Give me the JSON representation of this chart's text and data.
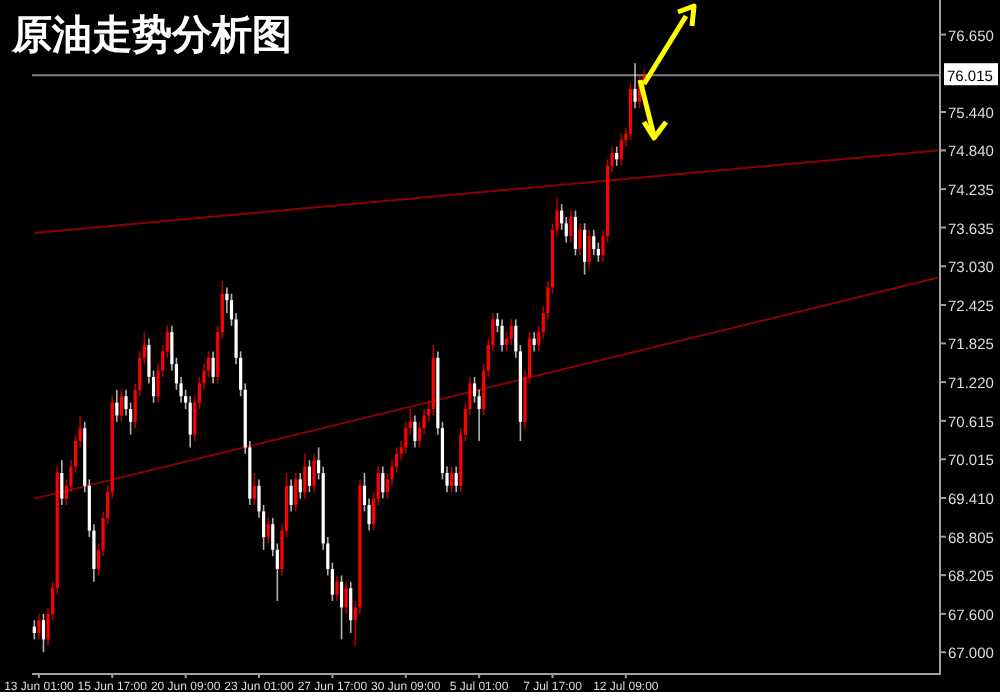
{
  "chart_data": {
    "type": "candlestick",
    "title": "原油走势分析图",
    "categories": [
      null,
      "13 Jun 01:00",
      null,
      null,
      null,
      null,
      null,
      null,
      null,
      null,
      null,
      null,
      null,
      null,
      null,
      null,
      null,
      "15 Jun 17:00",
      null,
      null,
      null,
      null,
      null,
      null,
      null,
      null,
      null,
      null,
      null,
      null,
      null,
      null,
      null,
      "20 Jun 09:00",
      null,
      null,
      null,
      null,
      null,
      null,
      null,
      null,
      null,
      null,
      null,
      null,
      null,
      null,
      null,
      "23 Jun 01:00",
      null,
      null,
      null,
      null,
      null,
      null,
      null,
      null,
      null,
      null,
      null,
      null,
      null,
      null,
      null,
      "27 Jun 17:00",
      null,
      null,
      null,
      null,
      null,
      null,
      null,
      null,
      null,
      null,
      null,
      null,
      null,
      null,
      null,
      "30 Jun 09:00",
      null,
      null,
      null,
      null,
      null,
      null,
      null,
      null,
      null,
      null,
      null,
      null,
      null,
      null,
      null,
      "5 Jul 01:00",
      null,
      null,
      null,
      null,
      null,
      null,
      null,
      null,
      null,
      null,
      null,
      null,
      null,
      null,
      null,
      "7 Jul 17:00",
      null,
      null,
      null,
      null,
      null,
      null,
      null,
      null,
      null,
      null,
      null,
      null,
      null,
      null,
      null,
      "12 Jul 09:00",
      null,
      null,
      null,
      null,
      null,
      null,
      null,
      null,
      null,
      null,
      null,
      null,
      null,
      null,
      null,
      null,
      null,
      null,
      null,
      null,
      null,
      null,
      null,
      null,
      null,
      null,
      null,
      null,
      null,
      null,
      null,
      null,
      null,
      null,
      null,
      null,
      null,
      null,
      null,
      null,
      null,
      null,
      null,
      null,
      null,
      null,
      null,
      null,
      null,
      null,
      null,
      null,
      null,
      null,
      null,
      null,
      null,
      null,
      null,
      null,
      null,
      null,
      null,
      null,
      null,
      null,
      null,
      null
    ],
    "ohlc": [
      [
        67.4,
        67.5,
        67.2,
        67.3
      ],
      [
        67.3,
        67.6,
        67.2,
        67.5
      ],
      [
        67.5,
        67.6,
        67.0,
        67.2
      ],
      [
        67.2,
        67.7,
        67.1,
        67.6
      ],
      [
        67.6,
        68.1,
        67.5,
        68.0
      ],
      [
        68.0,
        69.9,
        67.9,
        69.8
      ],
      [
        69.8,
        70.0,
        69.3,
        69.4
      ],
      [
        69.4,
        69.7,
        69.3,
        69.6
      ],
      [
        69.6,
        70.0,
        69.5,
        69.9
      ],
      [
        69.9,
        70.4,
        69.8,
        70.3
      ],
      [
        70.3,
        70.7,
        70.2,
        70.5
      ],
      [
        70.5,
        70.6,
        69.5,
        69.6
      ],
      [
        69.6,
        69.7,
        68.8,
        68.9
      ],
      [
        68.9,
        69.0,
        68.1,
        68.3
      ],
      [
        68.3,
        68.7,
        68.2,
        68.6
      ],
      [
        68.6,
        69.2,
        68.5,
        69.1
      ],
      [
        69.1,
        69.6,
        69.0,
        69.5
      ],
      [
        69.5,
        71.0,
        69.4,
        70.9
      ],
      [
        70.9,
        71.1,
        70.6,
        70.7
      ],
      [
        70.7,
        71.1,
        70.6,
        71.0
      ],
      [
        71.0,
        71.1,
        70.7,
        70.8
      ],
      [
        70.8,
        70.9,
        70.4,
        70.6
      ],
      [
        70.6,
        71.2,
        70.5,
        71.1
      ],
      [
        71.1,
        71.7,
        71.0,
        71.6
      ],
      [
        71.6,
        72.0,
        71.5,
        71.8
      ],
      [
        71.8,
        71.9,
        71.2,
        71.3
      ],
      [
        71.3,
        71.4,
        70.9,
        71.0
      ],
      [
        71.0,
        71.5,
        70.9,
        71.4
      ],
      [
        71.4,
        71.8,
        71.3,
        71.7
      ],
      [
        71.7,
        72.1,
        71.6,
        72.0
      ],
      [
        72.0,
        72.1,
        71.4,
        71.5
      ],
      [
        71.5,
        71.6,
        71.1,
        71.2
      ],
      [
        71.2,
        71.3,
        70.9,
        71.0
      ],
      [
        71.0,
        71.1,
        70.8,
        70.9
      ],
      [
        70.9,
        71.0,
        70.2,
        70.4
      ],
      [
        70.4,
        71.0,
        70.3,
        70.9
      ],
      [
        70.9,
        71.3,
        70.8,
        71.2
      ],
      [
        71.2,
        71.5,
        71.1,
        71.4
      ],
      [
        71.4,
        71.7,
        71.3,
        71.6
      ],
      [
        71.6,
        71.7,
        71.2,
        71.3
      ],
      [
        71.3,
        72.1,
        71.2,
        72.0
      ],
      [
        72.0,
        72.8,
        71.9,
        72.6
      ],
      [
        72.6,
        72.7,
        72.3,
        72.5
      ],
      [
        72.5,
        72.6,
        72.1,
        72.2
      ],
      [
        72.2,
        72.3,
        71.5,
        71.6
      ],
      [
        71.6,
        71.7,
        71.0,
        71.1
      ],
      [
        71.1,
        71.2,
        70.1,
        70.2
      ],
      [
        70.2,
        70.3,
        69.3,
        69.4
      ],
      [
        69.4,
        69.8,
        69.3,
        69.6
      ],
      [
        69.6,
        69.7,
        69.1,
        69.2
      ],
      [
        69.2,
        69.3,
        68.6,
        68.8
      ],
      [
        68.8,
        69.1,
        68.7,
        69.0
      ],
      [
        69.0,
        69.1,
        68.5,
        68.6
      ],
      [
        68.6,
        68.7,
        67.8,
        68.3
      ],
      [
        68.3,
        69.0,
        68.2,
        68.9
      ],
      [
        68.9,
        69.8,
        68.8,
        69.6
      ],
      [
        69.6,
        69.7,
        69.2,
        69.3
      ],
      [
        69.3,
        69.8,
        69.2,
        69.7
      ],
      [
        69.7,
        69.8,
        69.4,
        69.5
      ],
      [
        69.5,
        70.1,
        69.4,
        69.9
      ],
      [
        69.9,
        70.0,
        69.5,
        69.6
      ],
      [
        69.6,
        70.1,
        69.5,
        70.0
      ],
      [
        70.0,
        70.2,
        69.7,
        69.8
      ],
      [
        69.8,
        69.9,
        68.6,
        68.7
      ],
      [
        68.7,
        68.8,
        68.2,
        68.3
      ],
      [
        68.3,
        68.4,
        67.8,
        67.9
      ],
      [
        67.9,
        68.2,
        67.8,
        68.1
      ],
      [
        68.1,
        68.2,
        67.2,
        67.7
      ],
      [
        67.7,
        68.1,
        67.6,
        68.0
      ],
      [
        68.0,
        68.1,
        67.3,
        67.5
      ],
      [
        67.5,
        67.8,
        67.1,
        67.7
      ],
      [
        67.7,
        69.7,
        67.6,
        69.6
      ],
      [
        69.6,
        69.8,
        69.2,
        69.3
      ],
      [
        69.3,
        69.4,
        68.9,
        69.0
      ],
      [
        69.0,
        69.5,
        68.9,
        69.4
      ],
      [
        69.4,
        69.9,
        69.3,
        69.8
      ],
      [
        69.8,
        69.9,
        69.4,
        69.5
      ],
      [
        69.5,
        69.8,
        69.4,
        69.7
      ],
      [
        69.7,
        70.0,
        69.6,
        69.9
      ],
      [
        69.9,
        70.2,
        69.8,
        70.1
      ],
      [
        70.1,
        70.3,
        70.0,
        70.2
      ],
      [
        70.2,
        70.6,
        70.1,
        70.5
      ],
      [
        70.5,
        70.8,
        70.4,
        70.6
      ],
      [
        70.6,
        70.7,
        70.2,
        70.3
      ],
      [
        70.3,
        70.6,
        70.2,
        70.5
      ],
      [
        70.5,
        70.8,
        70.4,
        70.7
      ],
      [
        70.7,
        70.9,
        70.6,
        70.8
      ],
      [
        70.8,
        71.8,
        70.7,
        71.6
      ],
      [
        71.6,
        71.7,
        70.4,
        70.5
      ],
      [
        70.5,
        70.6,
        69.7,
        69.8
      ],
      [
        69.8,
        69.9,
        69.5,
        69.6
      ],
      [
        69.6,
        69.9,
        69.5,
        69.8
      ],
      [
        69.8,
        69.9,
        69.5,
        69.6
      ],
      [
        69.6,
        70.5,
        69.5,
        70.4
      ],
      [
        70.4,
        70.9,
        70.3,
        70.8
      ],
      [
        70.8,
        71.3,
        70.7,
        71.2
      ],
      [
        71.2,
        71.3,
        70.9,
        71.0
      ],
      [
        71.0,
        71.1,
        70.3,
        70.8
      ],
      [
        70.8,
        71.5,
        70.7,
        71.4
      ],
      [
        71.4,
        71.9,
        71.3,
        71.8
      ],
      [
        71.8,
        72.3,
        71.7,
        72.2
      ],
      [
        72.2,
        72.3,
        72.0,
        72.1
      ],
      [
        72.1,
        72.2,
        71.7,
        71.8
      ],
      [
        71.8,
        72.0,
        71.7,
        71.9
      ],
      [
        71.9,
        72.2,
        71.8,
        72.1
      ],
      [
        72.1,
        72.2,
        71.6,
        71.7
      ],
      [
        71.7,
        71.8,
        70.3,
        70.6
      ],
      [
        70.6,
        71.4,
        70.5,
        71.3
      ],
      [
        71.3,
        72.0,
        71.2,
        71.9
      ],
      [
        71.9,
        72.0,
        71.7,
        71.8
      ],
      [
        71.8,
        72.1,
        71.7,
        72.0
      ],
      [
        72.0,
        72.4,
        71.9,
        72.3
      ],
      [
        72.3,
        72.8,
        72.2,
        72.7
      ],
      [
        72.7,
        73.7,
        72.6,
        73.6
      ],
      [
        73.6,
        74.1,
        73.5,
        73.9
      ],
      [
        73.9,
        74.0,
        73.6,
        73.7
      ],
      [
        73.7,
        73.8,
        73.4,
        73.5
      ],
      [
        73.5,
        73.9,
        73.4,
        73.8
      ],
      [
        73.8,
        73.9,
        73.2,
        73.3
      ],
      [
        73.3,
        73.7,
        73.2,
        73.6
      ],
      [
        73.6,
        73.7,
        72.9,
        73.1
      ],
      [
        73.1,
        73.6,
        73.0,
        73.5
      ],
      [
        73.5,
        73.6,
        73.2,
        73.3
      ],
      [
        73.3,
        73.4,
        73.1,
        73.2
      ],
      [
        73.2,
        73.6,
        73.1,
        73.5
      ],
      [
        73.5,
        74.7,
        73.4,
        74.6
      ],
      [
        74.6,
        74.9,
        74.5,
        74.8
      ],
      [
        74.8,
        74.9,
        74.6,
        74.7
      ],
      [
        74.7,
        75.1,
        74.6,
        75.0
      ],
      [
        75.0,
        75.2,
        74.9,
        75.1
      ],
      [
        75.1,
        75.9,
        75.0,
        75.8
      ],
      [
        75.8,
        76.2,
        75.5,
        75.6
      ],
      [
        75.6,
        76.0,
        75.5,
        75.9
      ],
      [
        75.9,
        76.1,
        75.8,
        76.0
      ],
      null,
      null,
      null,
      null,
      null,
      null,
      null,
      null,
      null,
      null,
      null,
      null,
      null,
      null,
      null,
      null,
      null,
      null,
      null,
      null,
      null,
      null,
      null,
      null,
      null,
      null,
      null,
      null,
      null,
      null,
      null,
      null,
      null,
      null,
      null,
      null,
      null,
      null,
      null,
      null,
      null,
      null,
      null,
      null,
      null,
      null,
      null,
      null,
      null,
      null,
      null,
      null,
      null,
      null,
      null,
      null,
      null,
      null,
      null,
      null,
      null,
      null,
      null,
      null
    ],
    "colors": [
      "#ffffff",
      "#ff0000",
      "#ffffff",
      "#ff0000",
      "#ff0000",
      "#ff0000",
      "#ffffff",
      "#ff0000",
      "#ff0000",
      "#ff0000",
      "#ff0000",
      "#ffffff",
      "#ffffff",
      "#ffffff",
      "#ff0000",
      "#ff0000",
      "#ff0000",
      "#ff0000",
      "#ffffff",
      "#ff0000",
      "#ffffff",
      "#ffffff",
      "#ff0000",
      "#ff0000",
      "#ff0000",
      "#ffffff",
      "#ffffff",
      "#ff0000",
      "#ff0000",
      "#ff0000",
      "#ffffff",
      "#ffffff",
      "#ffffff",
      "#ffffff",
      "#ffffff",
      "#ff0000",
      "#ff0000",
      "#ff0000",
      "#ff0000",
      "#ffffff",
      "#ff0000",
      "#ff0000",
      "#ffffff",
      "#ffffff",
      "#ffffff",
      "#ffffff",
      "#ffffff",
      "#ffffff",
      "#ff0000",
      "#ffffff",
      "#ffffff",
      "#ff0000",
      "#ffffff",
      "#ffffff",
      "#ff0000",
      "#ff0000",
      "#ffffff",
      "#ff0000",
      "#ffffff",
      "#ff0000",
      "#ffffff",
      "#ff0000",
      "#ffffff",
      "#ffffff",
      "#ffffff",
      "#ffffff",
      "#ff0000",
      "#ffffff",
      "#ff0000",
      "#ffffff",
      "#ff0000",
      "#ff0000",
      "#ffffff",
      "#ffffff",
      "#ff0000",
      "#ff0000",
      "#ffffff",
      "#ff0000",
      "#ff0000",
      "#ff0000",
      "#ff0000",
      "#ff0000",
      "#ff0000",
      "#ffffff",
      "#ff0000",
      "#ff0000",
      "#ff0000",
      "#ff0000",
      "#ffffff",
      "#ffffff",
      "#ffffff",
      "#ff0000",
      "#ffffff",
      "#ff0000",
      "#ff0000",
      "#ff0000",
      "#ffffff",
      "#ffffff",
      "#ff0000",
      "#ff0000",
      "#ff0000",
      "#ffffff",
      "#ffffff",
      "#ff0000",
      "#ff0000",
      "#ffffff",
      "#ffffff",
      "#ff0000",
      "#ff0000",
      "#ffffff",
      "#ff0000",
      "#ff0000",
      "#ff0000",
      "#ff0000",
      "#ff0000",
      "#ffffff",
      "#ffffff",
      "#ff0000",
      "#ffffff",
      "#ff0000",
      "#ffffff",
      "#ff0000",
      "#ffffff",
      "#ffffff",
      "#ff0000",
      "#ff0000",
      "#ff0000",
      "#ffffff",
      "#ff0000",
      "#ff0000",
      "#ff0000",
      "#ffffff",
      "#ff0000",
      "#ff0000",
      null,
      null,
      null,
      null,
      null,
      null,
      null,
      null,
      null,
      null,
      null,
      null,
      null,
      null,
      null,
      null,
      null,
      null,
      null,
      null,
      null,
      null,
      null,
      null,
      null,
      null,
      null,
      null,
      null,
      null,
      null,
      null,
      null,
      null,
      null,
      null,
      null,
      null,
      null,
      null,
      null,
      null,
      null,
      null,
      null,
      null,
      null,
      null,
      null,
      null,
      null,
      null,
      null,
      null,
      null,
      null,
      null,
      null,
      null,
      null,
      null,
      null,
      null,
      null
    ],
    "series": [
      {
        "type": "line",
        "values": [
          73.55,
          null,
          null,
          null,
          null,
          null,
          null,
          null,
          null,
          null,
          null,
          null,
          null,
          null,
          null,
          null,
          null,
          null,
          null,
          null,
          null,
          null,
          null,
          null,
          null,
          null,
          null,
          null,
          null,
          null,
          null,
          null,
          null,
          null,
          null,
          null,
          null,
          null,
          null,
          null,
          null,
          null,
          null,
          null,
          null,
          null,
          null,
          null,
          null,
          null,
          null,
          null,
          null,
          null,
          null,
          null,
          null,
          null,
          null,
          null,
          null,
          null,
          null,
          null,
          null,
          null,
          null,
          null,
          null,
          null,
          null,
          null,
          null,
          null,
          null,
          null,
          null,
          null,
          null,
          null,
          null,
          null,
          null,
          null,
          null,
          null,
          null,
          null,
          null,
          null,
          null,
          null,
          null,
          null,
          null,
          null,
          null,
          null,
          null,
          null,
          null,
          null,
          null,
          null,
          null,
          null,
          null,
          null,
          null,
          null,
          null,
          null,
          null,
          null,
          null,
          null,
          null,
          null,
          null,
          null,
          null,
          null,
          null,
          null,
          null,
          null,
          null,
          null,
          null,
          null,
          null,
          null,
          null,
          null,
          null,
          null,
          null,
          null,
          null,
          null,
          null,
          null,
          null,
          null,
          null,
          null,
          null,
          null,
          null,
          null,
          null,
          null,
          null,
          null,
          null,
          null,
          null,
          null,
          null,
          null,
          null,
          null,
          null,
          null,
          null,
          null,
          null,
          null,
          null,
          null,
          null,
          null,
          null,
          null,
          null,
          null,
          null,
          null,
          null,
          null,
          null,
          null,
          null,
          null,
          null,
          null,
          null,
          null,
          null,
          null,
          null,
          null,
          null,
          null,
          null,
          null,
          null,
          74.84
        ],
        "color": "#8b0000"
      },
      {
        "type": "line",
        "values": [
          69.4,
          null,
          null,
          null,
          null,
          null,
          null,
          null,
          null,
          null,
          null,
          null,
          null,
          null,
          null,
          null,
          null,
          null,
          null,
          null,
          null,
          null,
          null,
          null,
          null,
          null,
          null,
          null,
          null,
          null,
          null,
          null,
          null,
          null,
          null,
          null,
          null,
          null,
          null,
          null,
          null,
          null,
          null,
          null,
          null,
          null,
          null,
          null,
          null,
          null,
          null,
          null,
          null,
          null,
          null,
          null,
          null,
          null,
          null,
          null,
          null,
          null,
          null,
          null,
          null,
          null,
          null,
          null,
          null,
          null,
          null,
          null,
          null,
          null,
          null,
          null,
          null,
          null,
          null,
          null,
          null,
          null,
          null,
          null,
          null,
          null,
          null,
          null,
          null,
          null,
          null,
          null,
          null,
          null,
          null,
          null,
          null,
          null,
          null,
          null,
          null,
          null,
          null,
          null,
          null,
          null,
          null,
          null,
          null,
          null,
          null,
          null,
          null,
          null,
          null,
          null,
          null,
          null,
          null,
          null,
          null,
          null,
          null,
          null,
          null,
          null,
          null,
          null,
          null,
          null,
          null,
          null,
          null,
          null,
          null,
          null,
          null,
          null,
          null,
          null,
          null,
          null,
          null,
          null,
          null,
          null,
          null,
          null,
          null,
          null,
          null,
          null,
          null,
          null,
          null,
          null,
          null,
          null,
          null,
          null,
          null,
          null,
          null,
          null,
          null,
          null,
          null,
          null,
          null,
          null,
          null,
          null,
          null,
          null,
          null,
          null,
          null,
          null,
          null,
          null,
          null,
          null,
          null,
          null,
          null,
          null,
          null,
          null,
          null,
          null,
          null,
          null,
          null,
          null,
          null,
          null,
          null,
          72.85
        ],
        "color": "#8b0000"
      }
    ],
    "ref_lines": [
      {
        "axis": "y",
        "value": 76.015,
        "label": "76.015",
        "color": "#808080"
      }
    ],
    "ylim": [
      66.66,
      77.19
    ],
    "yticks": [
      {
        "value": 67.0,
        "label": "67.000"
      },
      {
        "value": 67.6,
        "label": "67.600"
      },
      {
        "value": 68.205,
        "label": "68.205"
      },
      {
        "value": 68.805,
        "label": "68.805"
      },
      {
        "value": 69.41,
        "label": "69.410"
      },
      {
        "value": 70.015,
        "label": "70.015"
      },
      {
        "value": 70.615,
        "label": "70.615"
      },
      {
        "value": 71.22,
        "label": "71.220"
      },
      {
        "value": 71.825,
        "label": "71.825"
      },
      {
        "value": 72.425,
        "label": "72.425"
      },
      {
        "value": 73.03,
        "label": "73.030"
      },
      {
        "value": 73.635,
        "label": "73.635"
      },
      {
        "value": 74.235,
        "label": "74.235"
      },
      {
        "value": 74.84,
        "label": "74.840"
      },
      {
        "value": 75.44,
        "label": "75.440"
      },
      {
        "value": 76.65,
        "label": "76.650"
      }
    ]
  }
}
